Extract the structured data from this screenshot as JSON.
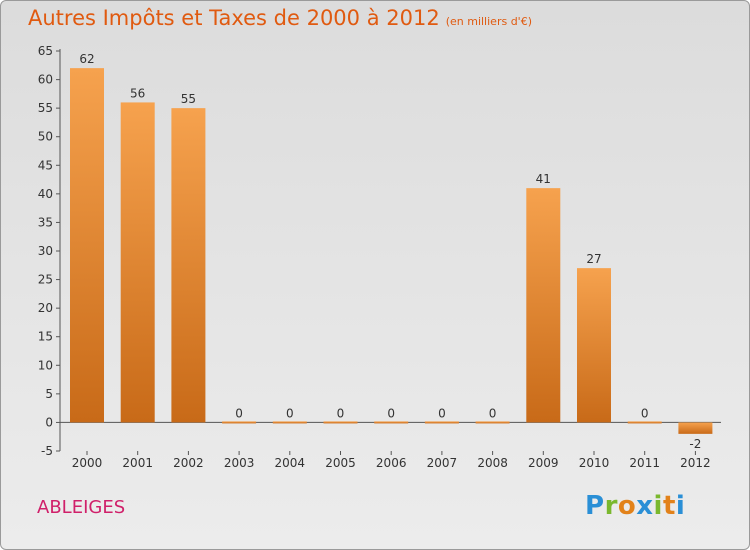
{
  "title": "Autres Impôts et Taxes de 2000 à 2012",
  "unit": "(en milliers d'€)",
  "commune": "ABLEIGES",
  "logo": {
    "letters": [
      "P",
      "r",
      "o",
      "x",
      "i",
      "t",
      "i"
    ],
    "colors": [
      "#2a8fd6",
      "#7ab82e",
      "#e2821a",
      "#2a8fd6",
      "#7ab82e",
      "#e2821a",
      "#2a8fd6"
    ]
  },
  "colors": {
    "bar_light": "#f6a24e",
    "bar_dark": "#c86a18",
    "title": "#e05a10",
    "commune": "#d0206a"
  },
  "chart_data": {
    "type": "bar",
    "categories": [
      "2000",
      "2001",
      "2002",
      "2003",
      "2004",
      "2005",
      "2006",
      "2007",
      "2008",
      "2009",
      "2010",
      "2011",
      "2012"
    ],
    "values": [
      62,
      56,
      55,
      0,
      0,
      0,
      0,
      0,
      0,
      41,
      27,
      0,
      -2
    ],
    "data_labels": [
      "62",
      "56",
      "55",
      "0",
      "0",
      "0",
      "0",
      "0",
      "0",
      "41",
      "27",
      "0",
      "-2"
    ],
    "ylim": [
      -5,
      65
    ],
    "yticks": [
      -5,
      0,
      5,
      10,
      15,
      20,
      25,
      30,
      35,
      40,
      45,
      50,
      55,
      60,
      65
    ],
    "grid": false,
    "xlabel": "",
    "ylabel": ""
  }
}
